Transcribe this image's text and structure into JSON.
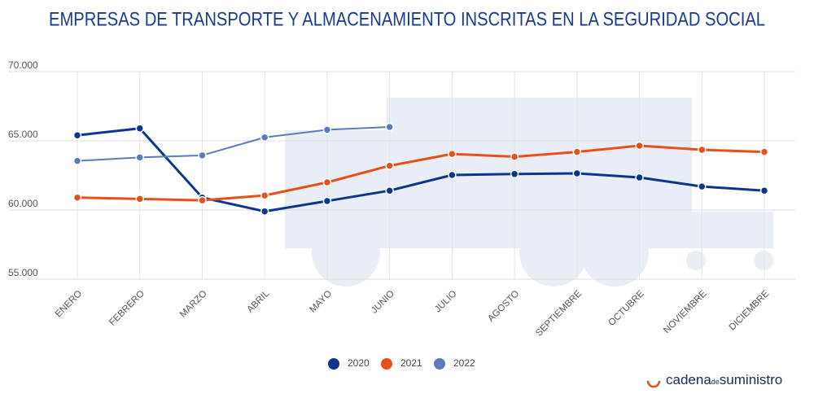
{
  "chart_data": {
    "type": "line",
    "title": "EMPRESAS DE TRANSPORTE Y ALMACENAMIENTO INSCRITAS EN LA SEGURIDAD SOCIAL",
    "categories": [
      "ENERO",
      "FEBRERO",
      "MARZO",
      "ABRIL",
      "MAYO",
      "JUNIO",
      "JULIO",
      "AGOSTO",
      "SEPTIEMBRE",
      "OCTUBRE",
      "NOVIEMBRE",
      "DICIEMBRE"
    ],
    "series": [
      {
        "name": "2020",
        "color": "#0d3590",
        "values": [
          65400,
          65900,
          60900,
          59900,
          60650,
          61400,
          62530,
          62600,
          62650,
          62350,
          61700,
          61400
        ]
      },
      {
        "name": "2021",
        "color": "#e8501a",
        "values": [
          60900,
          60800,
          60700,
          61050,
          62000,
          63200,
          64050,
          63850,
          64200,
          64650,
          64350,
          64200
        ]
      },
      {
        "name": "2022",
        "color": "#5b7bbf",
        "values": [
          63550,
          63800,
          63950,
          65250,
          65800,
          66000,
          null,
          null,
          null,
          null,
          null,
          null
        ]
      }
    ],
    "ylim": [
      55000,
      70000
    ],
    "yticks": [
      {
        "value": 55000,
        "label": "55.000"
      },
      {
        "value": 60000,
        "label": "60.000"
      },
      {
        "value": 65000,
        "label": "65.000"
      },
      {
        "value": 70000,
        "label": "70.000"
      }
    ],
    "grid": true,
    "legend": "bottom"
  },
  "logo": {
    "brand": "cadena",
    "de": "de",
    "tail": "suministro"
  }
}
